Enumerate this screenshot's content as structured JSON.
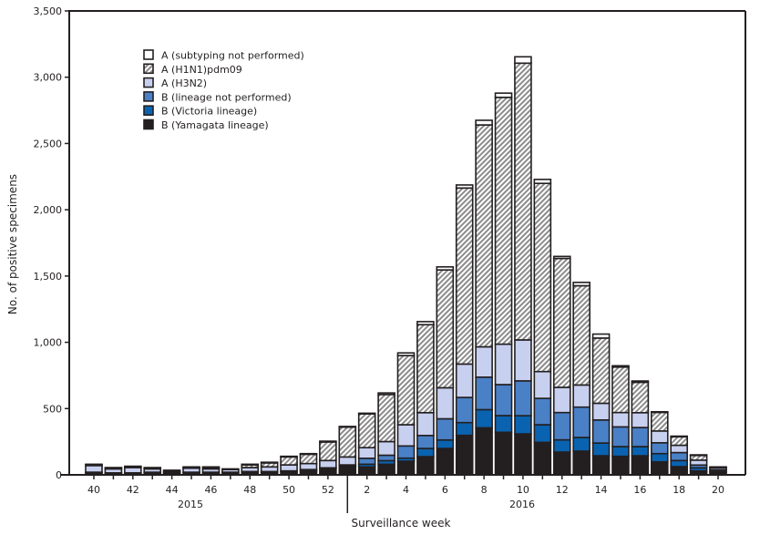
{
  "chart_data": {
    "type": "bar",
    "stacked": true,
    "ylabel": "No. of positive specimens",
    "xlabel": "Surveillance week",
    "ylim": [
      0,
      3500
    ],
    "yticks": [
      0,
      500,
      1000,
      1500,
      2000,
      2500,
      3000,
      3500
    ],
    "ytick_labels": [
      "0",
      "500",
      "1,000",
      "1,500",
      "2,000",
      "2,500",
      "3,000",
      "3,500"
    ],
    "categories": [
      40,
      41,
      42,
      43,
      44,
      45,
      46,
      47,
      48,
      49,
      50,
      51,
      52,
      1,
      2,
      3,
      4,
      5,
      6,
      7,
      8,
      9,
      10,
      11,
      12,
      13,
      14,
      15,
      16,
      17,
      18,
      19,
      20
    ],
    "xtick_labels": [
      "40",
      "42",
      "44",
      "46",
      "48",
      "50",
      "52",
      "2",
      "4",
      "6",
      "8",
      "10",
      "12",
      "14",
      "16",
      "18",
      "20"
    ],
    "year_labels": [
      "2015",
      "2016"
    ],
    "legend_position": "top-left",
    "grid": false,
    "series": [
      {
        "name": "B (Yamagata lineage)",
        "color": "#231f20",
        "pattern": "solid",
        "values": [
          15,
          10,
          10,
          15,
          10,
          15,
          15,
          15,
          20,
          20,
          25,
          30,
          50,
          65,
          60,
          80,
          103,
          137,
          199,
          298,
          355,
          321,
          309,
          245,
          172,
          179,
          144,
          140,
          144,
          98,
          62,
          30,
          20
        ]
      },
      {
        "name": "B (Victoria lineage)",
        "color": "#0a63b0",
        "pattern": "solid",
        "values": [
          0,
          0,
          0,
          0,
          0,
          0,
          0,
          0,
          0,
          0,
          0,
          5,
          0,
          5,
          20,
          27,
          23,
          62,
          64,
          96,
          137,
          126,
          137,
          133,
          92,
          103,
          96,
          73,
          69,
          62,
          46,
          23,
          5
        ]
      },
      {
        "name": "B (lineage not performed)",
        "color": "#4a80c6",
        "pattern": "solid",
        "values": [
          5,
          5,
          5,
          5,
          5,
          5,
          5,
          5,
          5,
          5,
          5,
          5,
          3,
          5,
          45,
          41,
          92,
          98,
          160,
          190,
          245,
          234,
          263,
          199,
          206,
          229,
          174,
          149,
          144,
          82,
          60,
          21,
          12
        ]
      },
      {
        "name": "A (H3N2)",
        "color": "#c8d0f0",
        "pattern": "solid",
        "values": [
          50,
          30,
          40,
          25,
          10,
          30,
          25,
          20,
          30,
          35,
          45,
          45,
          55,
          60,
          80,
          103,
          160,
          172,
          234,
          252,
          229,
          305,
          309,
          202,
          190,
          167,
          126,
          108,
          112,
          89,
          55,
          37,
          15
        ]
      },
      {
        "name": "A (H1N1)pdm09",
        "color": "#9a9a9a",
        "pattern": "hatched",
        "values": [
          5,
          5,
          5,
          5,
          5,
          5,
          10,
          0,
          20,
          30,
          60,
          70,
          140,
          225,
          255,
          355,
          522,
          664,
          889,
          1328,
          1674,
          1862,
          2088,
          1420,
          973,
          749,
          492,
          343,
          229,
          140,
          64,
          35,
          5
        ]
      },
      {
        "name": "A (subtyping not performed)",
        "color": "#ffffff",
        "pattern": "solid",
        "values": [
          5,
          5,
          5,
          5,
          5,
          5,
          5,
          5,
          5,
          5,
          5,
          5,
          6,
          5,
          5,
          12,
          20,
          23,
          23,
          23,
          35,
          32,
          48,
          30,
          15,
          25,
          30,
          10,
          10,
          5,
          5,
          5,
          3
        ]
      }
    ]
  }
}
